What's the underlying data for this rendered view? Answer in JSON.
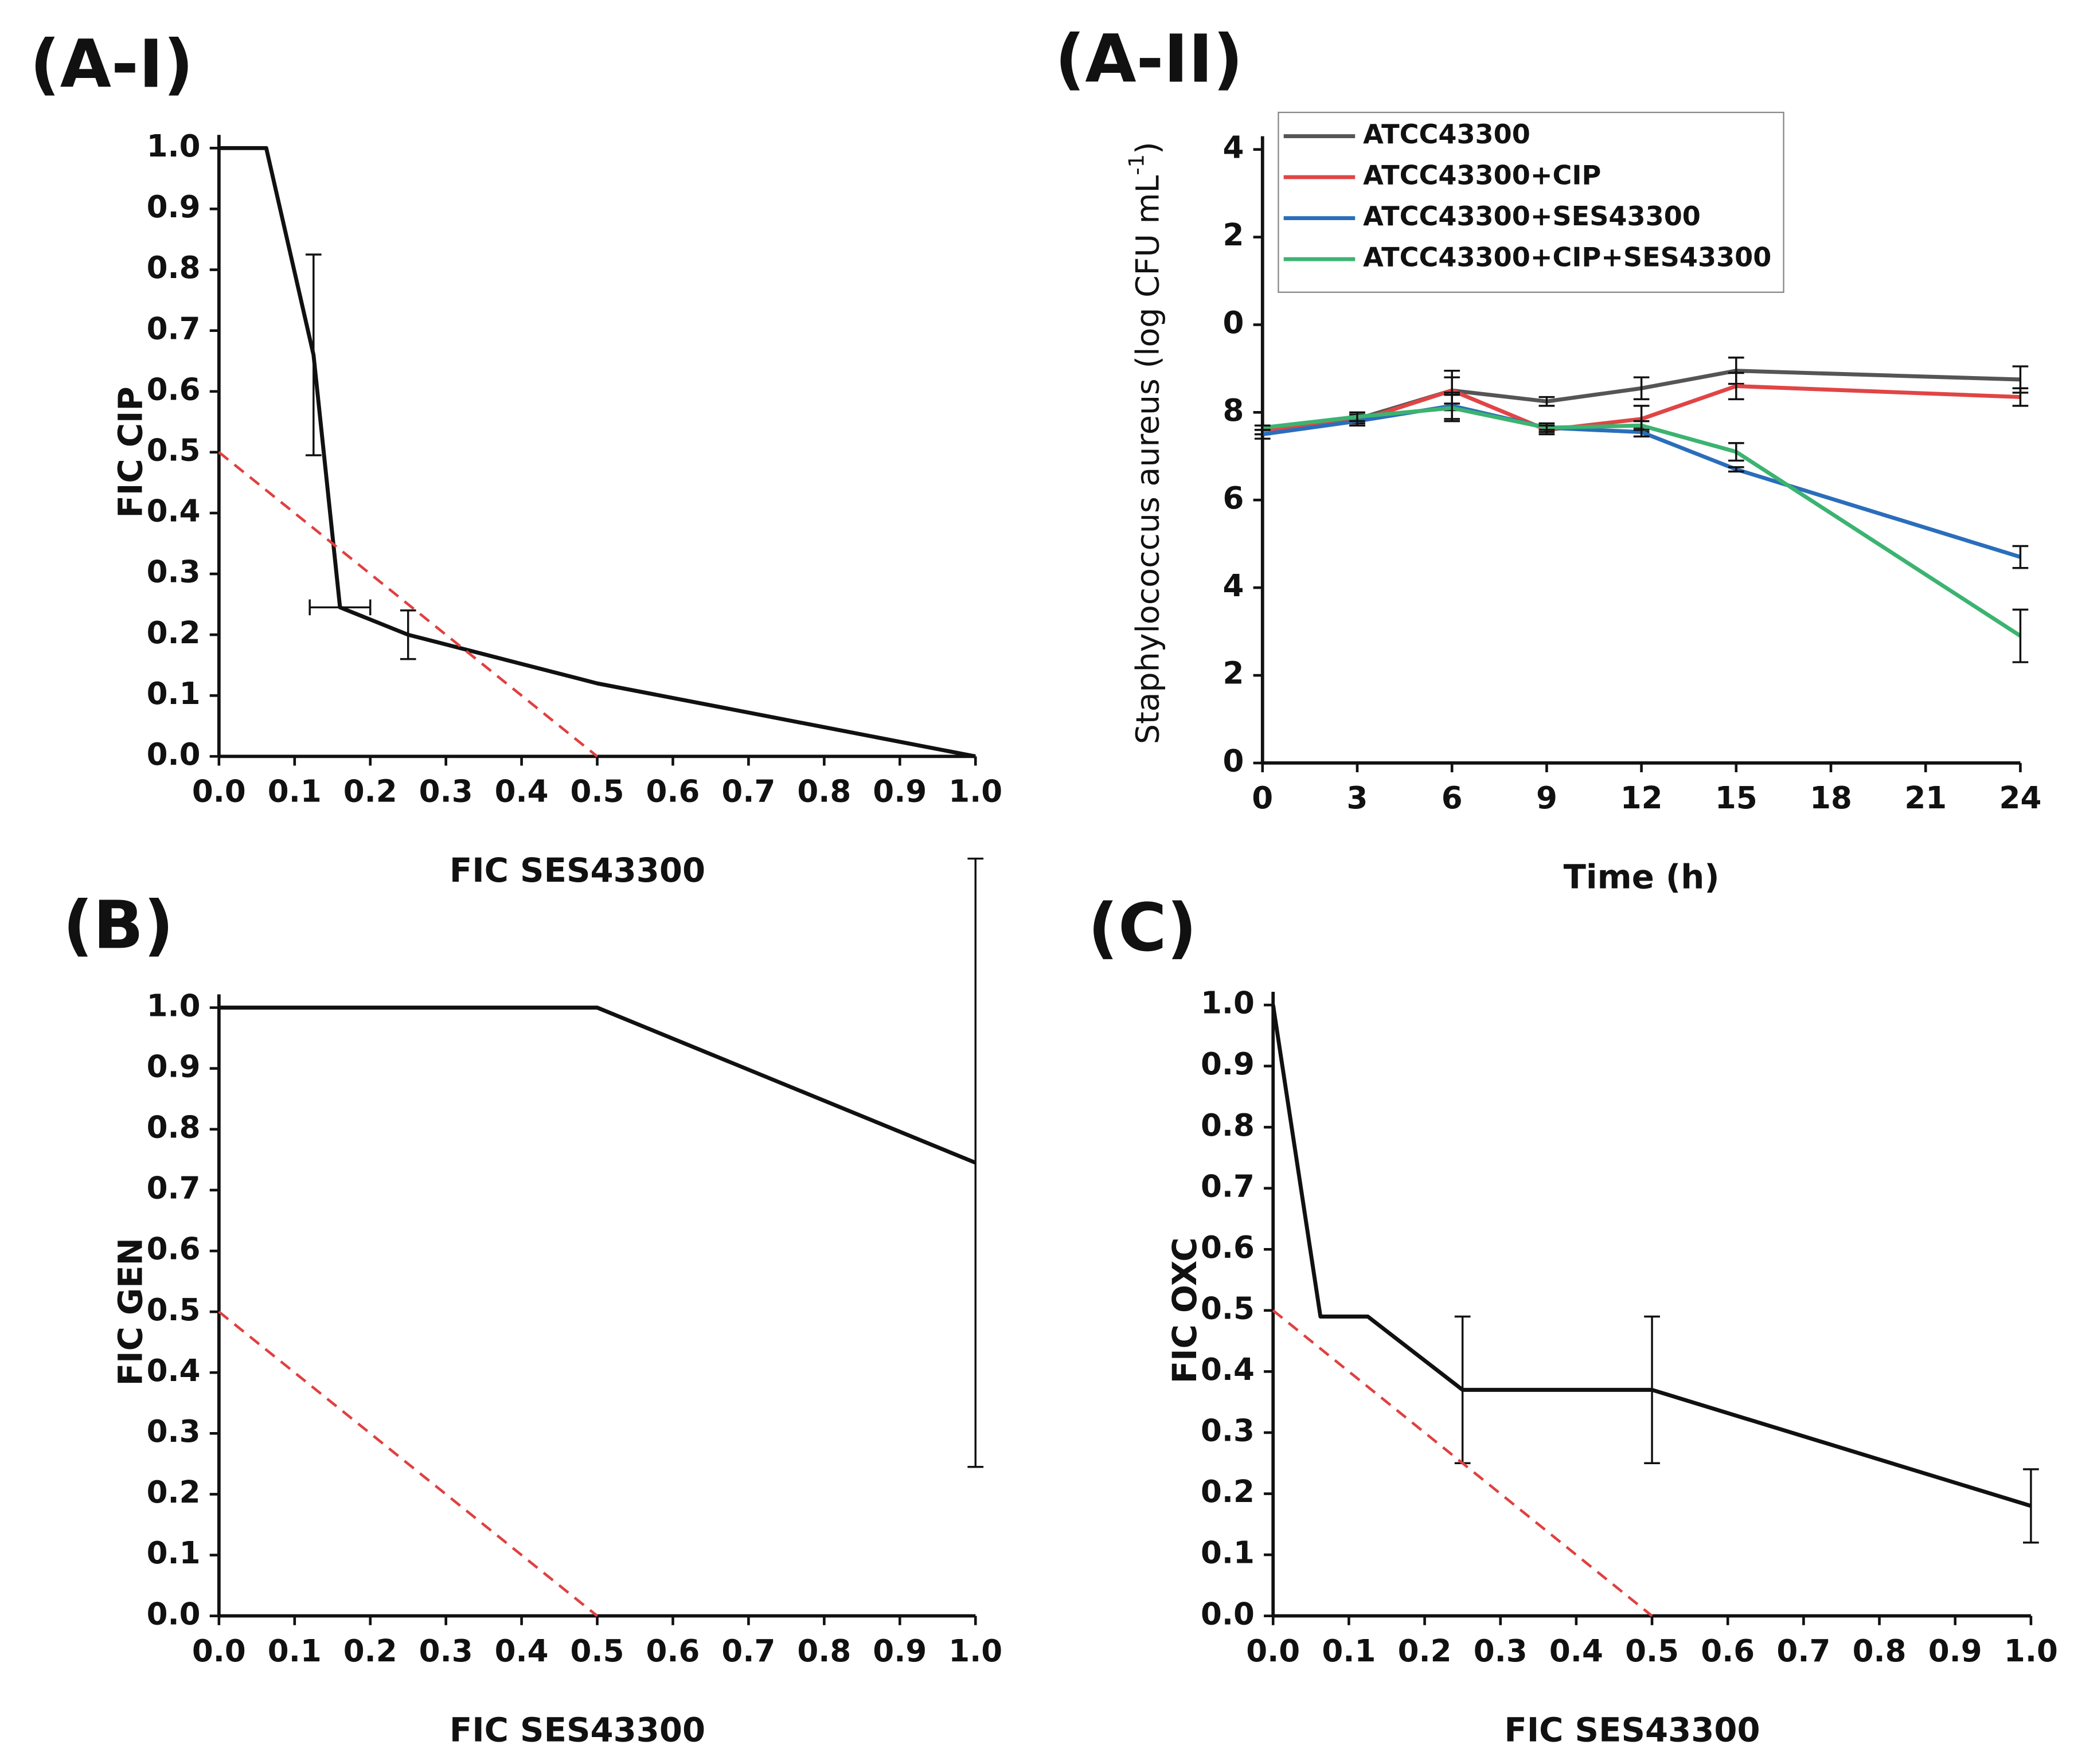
{
  "chart_data": [
    {
      "type": "line",
      "panel": "(A-I)",
      "xlabel": "FIC SES43300",
      "ylabel": "FIC CIP",
      "xlim": [
        0,
        1
      ],
      "ylim": [
        0,
        1
      ],
      "xticks": [
        {
          "value": 0,
          "label": "0.0"
        },
        0.1,
        0.2,
        0.3,
        0.4,
        0.5,
        0.6,
        0.7,
        0.8,
        0.9,
        {
          "value": 1,
          "label": "1.0"
        }
      ],
      "yticks": [
        {
          "value": 0,
          "label": "0.0"
        },
        0.1,
        0.2,
        0.3,
        0.4,
        0.5,
        0.6,
        0.7,
        0.8,
        0.9,
        {
          "value": 1,
          "label": "1.0"
        }
      ],
      "series": [
        {
          "color": "#111111",
          "x": [
            0,
            0.0625,
            0.125,
            0.16,
            0.25,
            0.5,
            1
          ],
          "values": [
            1,
            1,
            0.66,
            0.245,
            0.2,
            0.12,
            0
          ],
          "errors": [
            null,
            null,
            0.165,
            null,
            0.04,
            null,
            null
          ],
          "xerrors": [
            null,
            null,
            null,
            0.04,
            null,
            null,
            null
          ]
        },
        {
          "color": "#e04040",
          "dash": true,
          "x": [
            0,
            0.5
          ],
          "values": [
            0.5,
            0
          ]
        }
      ]
    },
    {
      "type": "line",
      "panel": "(A-II)",
      "xlabel": "Time (h)",
      "ylabel": [
        "Staphylococcus aureus (log CFU mL",
        "-1",
        ")"
      ],
      "xlim": [
        0,
        24
      ],
      "ylim": [
        0,
        14
      ],
      "xticks": [
        0,
        3,
        6,
        9,
        12,
        15,
        18,
        21,
        24
      ],
      "yticks": [
        0,
        2,
        4,
        6,
        8,
        {
          "value": 10,
          "label": "0"
        },
        {
          "value": 12,
          "label": "2"
        },
        {
          "value": 14,
          "label": "4"
        }
      ],
      "legend": "top-left",
      "x": [
        0,
        3,
        6,
        9,
        12,
        15,
        24
      ],
      "series": [
        {
          "name": "ATCC43300",
          "color": "#555555",
          "values": [
            7.6,
            7.85,
            8.5,
            8.25,
            8.55,
            8.95,
            8.75
          ],
          "errors": [
            0.1,
            0.1,
            0.45,
            0.1,
            0.25,
            0.3,
            0.3
          ]
        },
        {
          "name": "ATCC43300+CIP",
          "color": "#e04545",
          "values": [
            7.6,
            7.8,
            8.5,
            7.6,
            7.85,
            8.6,
            8.35
          ],
          "errors": [
            0.1,
            0.1,
            0.3,
            0.1,
            0.3,
            0.3,
            0.2
          ]
        },
        {
          "name": "ATCC43300+SES43300",
          "color": "#2a6ebb",
          "values": [
            7.5,
            7.8,
            8.15,
            7.65,
            7.55,
            6.7,
            4.7
          ],
          "errors": [
            0.1,
            0.1,
            0.3,
            0.1,
            0.1,
            0.05,
            0.25
          ]
        },
        {
          "name": "ATCC43300+CIP+SES43300",
          "color": "#3cb371",
          "values": [
            7.65,
            7.9,
            8.1,
            7.65,
            7.7,
            7.1,
            2.9
          ],
          "errors": [
            0.05,
            0.1,
            0.3,
            0.05,
            0.1,
            0.2,
            0.6
          ]
        }
      ]
    },
    {
      "type": "line",
      "panel": "(B)",
      "xlabel": "FIC SES43300",
      "ylabel": "FIC GEN",
      "xlim": [
        0,
        1
      ],
      "ylim": [
        0,
        1
      ],
      "xticks": [
        {
          "value": 0,
          "label": "0.0"
        },
        0.1,
        0.2,
        0.3,
        0.4,
        0.5,
        0.6,
        0.7,
        0.8,
        0.9,
        {
          "value": 1,
          "label": "1.0"
        }
      ],
      "yticks": [
        {
          "value": 0,
          "label": "0.0"
        },
        0.1,
        0.2,
        0.3,
        0.4,
        0.5,
        0.6,
        0.7,
        0.8,
        0.9,
        {
          "value": 1,
          "label": "1.0"
        }
      ],
      "series": [
        {
          "color": "#111111",
          "x": [
            0,
            0.5,
            1
          ],
          "values": [
            1,
            1,
            0.745
          ],
          "errors": [
            null,
            null,
            0.5
          ]
        },
        {
          "color": "#e04040",
          "dash": true,
          "x": [
            0,
            0.5
          ],
          "values": [
            0.5,
            0
          ]
        }
      ]
    },
    {
      "type": "line",
      "panel": "(C)",
      "xlabel": "FIC SES43300",
      "ylabel": "FIC OXC",
      "xlim": [
        0,
        1
      ],
      "ylim": [
        0,
        1
      ],
      "xticks": [
        {
          "value": 0,
          "label": "0.0"
        },
        0.1,
        0.2,
        0.3,
        0.4,
        0.5,
        0.6,
        0.7,
        0.8,
        0.9,
        {
          "value": 1,
          "label": "1.0"
        }
      ],
      "yticks": [
        {
          "value": 0,
          "label": "0.0"
        },
        0.1,
        0.2,
        0.3,
        0.4,
        0.5,
        0.6,
        0.7,
        0.8,
        0.9,
        {
          "value": 1,
          "label": "1.0"
        }
      ],
      "series": [
        {
          "color": "#111111",
          "x": [
            0,
            0.0625,
            0.125,
            0.25,
            0.5,
            1
          ],
          "values": [
            1,
            0.49,
            0.49,
            0.37,
            0.37,
            0.18
          ],
          "errors": [
            null,
            null,
            null,
            0.12,
            0.12,
            0.06
          ]
        },
        {
          "color": "#e04040",
          "dash": true,
          "x": [
            0,
            0.5
          ],
          "values": [
            0.5,
            0
          ]
        }
      ]
    }
  ]
}
